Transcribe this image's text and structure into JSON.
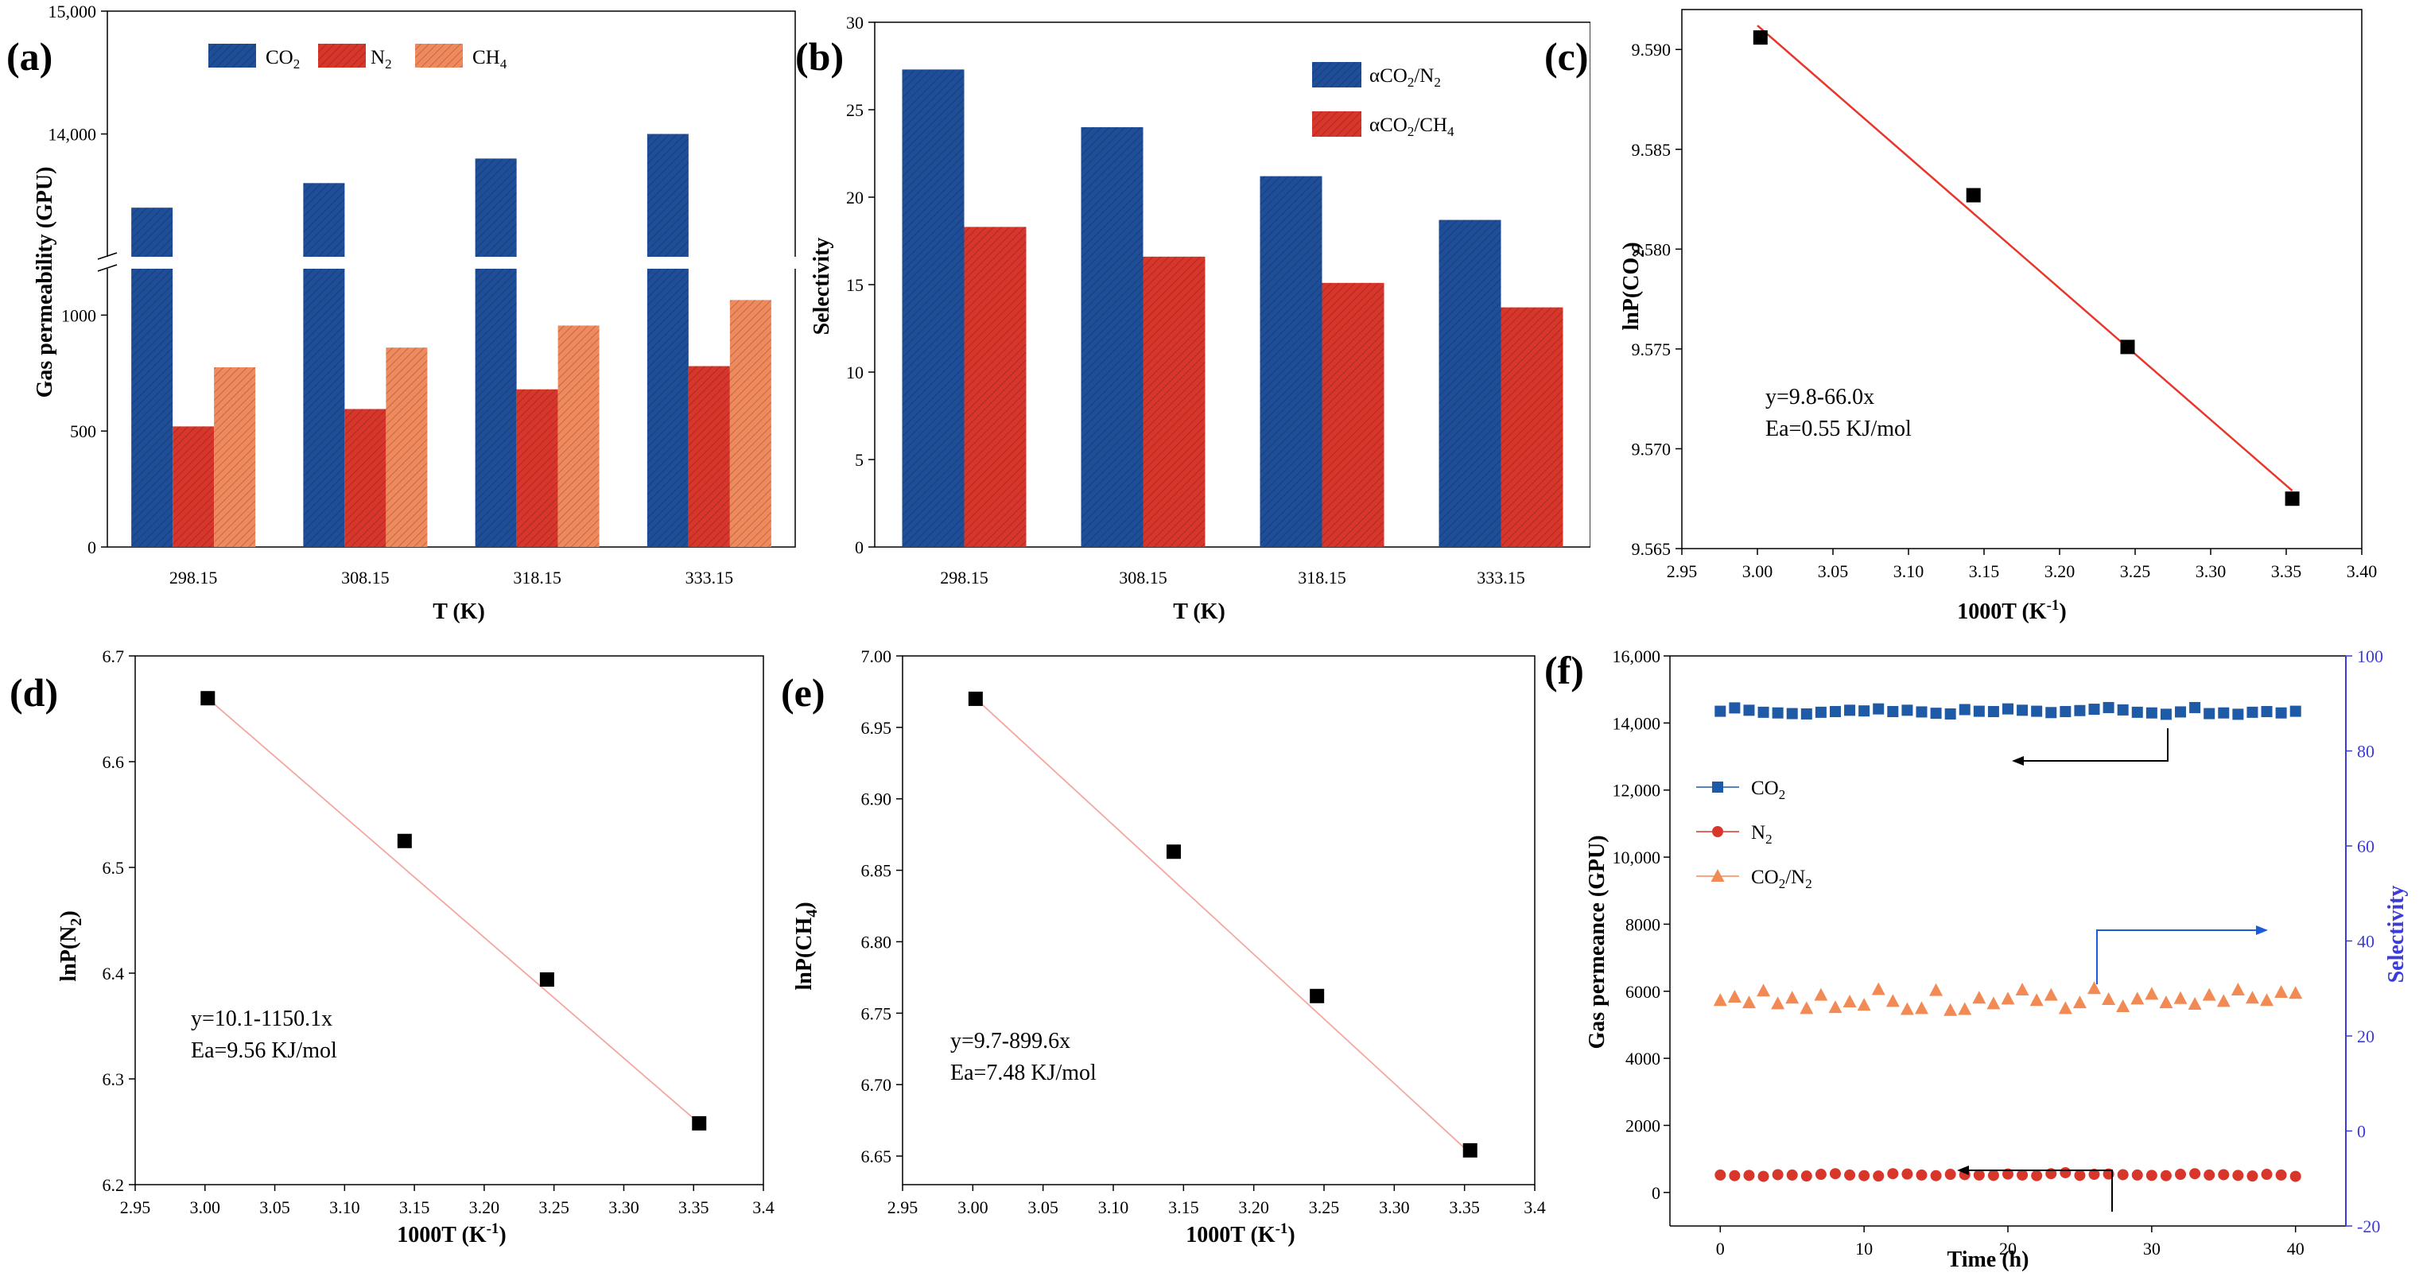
{
  "colors": {
    "co2": "#1f4e99",
    "n2": "#d9362b",
    "ch4": "#f08a5d",
    "fit_red": "#e8362b",
    "fit_pink": "#f4a7a0",
    "selectivity_axis": "#3b3bd9",
    "f_co2": "#1f5aa6",
    "f_n2": "#d9362b",
    "f_sel": "#f28a55"
  },
  "chart_data": [
    {
      "id": "a",
      "panel_label": "(a)",
      "type": "bar",
      "xlabel": "T (K)",
      "ylabel": "Gas permeability (GPU)",
      "categories": [
        "298.15",
        "308.15",
        "318.15",
        "333.15"
      ],
      "series": [
        {
          "name": "CO2",
          "legend_main": "CO",
          "legend_sub": "2",
          "values": [
            13400,
            13600,
            13800,
            14000
          ]
        },
        {
          "name": "N2",
          "legend_main": "N",
          "legend_sub": "2",
          "values": [
            520,
            595,
            680,
            780
          ]
        },
        {
          "name": "CH4",
          "legend_main": "CH",
          "legend_sub": "4",
          "values": [
            775,
            860,
            955,
            1065
          ]
        }
      ],
      "axis_break": true,
      "lower_ylim": [
        0,
        1200
      ],
      "upper_ylim": [
        13000,
        15000
      ],
      "yticks_lower": [
        "0",
        "500",
        "1000"
      ],
      "yticks_upper": [
        "14,000",
        "15,000"
      ]
    },
    {
      "id": "b",
      "panel_label": "(b)",
      "type": "bar",
      "xlabel": "T (K)",
      "ylabel": "Selectivity",
      "categories": [
        "298.15",
        "308.15",
        "318.15",
        "333.15"
      ],
      "series": [
        {
          "name": "αCO2/N2",
          "legend_main": "αCO",
          "legend_sub": "2",
          "legend_tail": "/N",
          "legend_sub2": "2",
          "values": [
            27.3,
            24.0,
            21.2,
            18.7
          ]
        },
        {
          "name": "αCO2/CH4",
          "legend_main": "αCO",
          "legend_sub": "2",
          "legend_tail": "/CH",
          "legend_sub2": "4",
          "values": [
            18.3,
            16.6,
            15.1,
            13.7
          ]
        }
      ],
      "ylim": [
        0,
        30
      ],
      "yticks": [
        "0",
        "5",
        "10",
        "15",
        "20",
        "25",
        "30"
      ]
    },
    {
      "id": "c",
      "panel_label": "(c)",
      "type": "scatter",
      "xlabel_main": "1000T (K",
      "xlabel_sup": "-1",
      "xlabel_end": ")",
      "ylabel_main": "lnP(CO",
      "ylabel_sub": "2",
      "ylabel_end": ")",
      "x": [
        3.002,
        3.143,
        3.245,
        3.354
      ],
      "y": [
        9.5906,
        9.5827,
        9.5751,
        9.5675
      ],
      "fit": {
        "x": [
          3.0,
          3.354
        ],
        "y": [
          9.5912,
          9.5679
        ]
      },
      "xlim": [
        2.95,
        3.4
      ],
      "ylim": [
        9.565,
        9.592
      ],
      "xticks": [
        "2.95",
        "3.00",
        "3.05",
        "3.10",
        "3.15",
        "3.20",
        "3.25",
        "3.30",
        "3.35",
        "3.40"
      ],
      "yticks": [
        "9.565",
        "9.570",
        "9.575",
        "9.580",
        "9.585",
        "9.590"
      ],
      "annotation_1": "y=9.8-66.0x",
      "annotation_2": "Ea=0.55 KJ/mol"
    },
    {
      "id": "d",
      "panel_label": "(d)",
      "type": "scatter",
      "xlabel_main": "1000T (K",
      "xlabel_sup": "-1",
      "xlabel_end": ")",
      "ylabel_main": "lnP(N",
      "ylabel_sub": "2",
      "ylabel_end": ")",
      "x": [
        3.002,
        3.143,
        3.245,
        3.354
      ],
      "y": [
        6.66,
        6.525,
        6.394,
        6.258
      ],
      "fit": {
        "x": [
          3.0,
          3.354
        ],
        "y": [
          6.662,
          6.258
        ]
      },
      "xlim": [
        2.95,
        3.4
      ],
      "ylim": [
        6.2,
        6.7
      ],
      "xticks": [
        "2.95",
        "3.00",
        "3.05",
        "3.10",
        "3.15",
        "3.20",
        "3.25",
        "3.30",
        "3.35",
        "3.4"
      ],
      "yticks": [
        "6.2",
        "6.3",
        "6.4",
        "6.5",
        "6.6",
        "6.7"
      ],
      "annotation_1": "y=10.1-1150.1x",
      "annotation_2": "Ea=9.56 KJ/mol"
    },
    {
      "id": "e",
      "panel_label": "(e)",
      "type": "scatter",
      "xlabel_main": "1000T (K",
      "xlabel_sup": "-1",
      "xlabel_end": ")",
      "ylabel_main": "lnP(CH",
      "ylabel_sub": "4",
      "ylabel_end": ")",
      "x": [
        3.002,
        3.143,
        3.245,
        3.354
      ],
      "y": [
        6.97,
        6.863,
        6.762,
        6.654
      ],
      "fit": {
        "x": [
          3.0,
          3.354
        ],
        "y": [
          6.972,
          6.652
        ]
      },
      "xlim": [
        2.95,
        3.4
      ],
      "ylim": [
        6.63,
        7.0
      ],
      "xticks": [
        "2.95",
        "3.00",
        "3.05",
        "3.10",
        "3.15",
        "3.20",
        "3.25",
        "3.30",
        "3.35",
        "3.4"
      ],
      "yticks": [
        "6.65",
        "6.70",
        "6.75",
        "6.80",
        "6.85",
        "6.90",
        "6.95",
        "7.00"
      ],
      "annotation_1": "y=9.7-899.6x",
      "annotation_2": "Ea=7.48 KJ/mol"
    },
    {
      "id": "f",
      "panel_label": "(f)",
      "type": "line",
      "xlabel": "Time (h)",
      "ylabel_left": "Gas permeance (GPU)",
      "ylabel_right": "Selectivity",
      "xlim": [
        -3.5,
        43.5
      ],
      "ylim_left": [
        -1000,
        16000
      ],
      "ylim_right": [
        -20,
        100
      ],
      "xticks": [
        "0",
        "10",
        "20",
        "30",
        "40"
      ],
      "yticks_left": [
        "0",
        "2000",
        "4000",
        "6000",
        "8000",
        "10,000",
        "12,000",
        "14,000",
        "16,000"
      ],
      "yticks_right": [
        "-20",
        "0",
        "20",
        "40",
        "60",
        "80",
        "100"
      ],
      "legend": [
        {
          "main": "CO",
          "sub": "2",
          "tail": "",
          "sub2": ""
        },
        {
          "main": "N",
          "sub": "2",
          "tail": "",
          "sub2": ""
        },
        {
          "main": "CO",
          "sub": "2",
          "tail": "/N",
          "sub2": "2"
        }
      ],
      "series": [
        {
          "name": "CO2",
          "axis": "left",
          "marker": "square",
          "x": [
            0,
            1,
            2,
            3,
            4,
            5,
            6,
            7,
            8,
            9,
            10,
            11,
            12,
            13,
            14,
            15,
            16,
            17,
            18,
            19,
            20,
            21,
            22,
            23,
            24,
            25,
            26,
            27,
            28,
            29,
            30,
            31,
            32,
            33,
            34,
            35,
            36,
            37,
            38,
            39,
            40
          ],
          "values": [
            14350,
            14450,
            14380,
            14320,
            14300,
            14280,
            14270,
            14320,
            14340,
            14380,
            14360,
            14420,
            14340,
            14380,
            14330,
            14290,
            14270,
            14400,
            14350,
            14340,
            14420,
            14380,
            14350,
            14310,
            14340,
            14370,
            14410,
            14460,
            14390,
            14320,
            14300,
            14260,
            14330,
            14460,
            14280,
            14300,
            14260,
            14320,
            14340,
            14300,
            14350
          ]
        },
        {
          "name": "N2",
          "axis": "left",
          "marker": "circle",
          "x": [
            0,
            1,
            2,
            3,
            4,
            5,
            6,
            7,
            8,
            9,
            10,
            11,
            12,
            13,
            14,
            15,
            16,
            17,
            18,
            19,
            20,
            21,
            22,
            23,
            24,
            25,
            26,
            27,
            28,
            29,
            30,
            31,
            32,
            33,
            34,
            35,
            36,
            37,
            38,
            39,
            40
          ],
          "values": [
            520,
            500,
            510,
            480,
            530,
            520,
            490,
            540,
            560,
            520,
            500,
            490,
            560,
            550,
            520,
            500,
            540,
            530,
            520,
            510,
            550,
            520,
            500,
            560,
            590,
            510,
            540,
            550,
            530,
            520,
            510,
            500,
            540,
            560,
            520,
            530,
            510,
            490,
            540,
            520,
            480
          ]
        },
        {
          "name": "CO2/N2",
          "axis": "right",
          "marker": "triangle",
          "x": [
            0,
            1,
            2,
            3,
            4,
            5,
            6,
            7,
            8,
            9,
            10,
            11,
            12,
            13,
            14,
            15,
            16,
            17,
            18,
            19,
            20,
            21,
            22,
            23,
            24,
            25,
            26,
            27,
            28,
            29,
            30,
            31,
            32,
            33,
            34,
            35,
            36,
            37,
            38,
            39,
            40
          ],
          "values": [
            27.5,
            28.2,
            27.0,
            29.5,
            26.8,
            28.0,
            25.8,
            28.6,
            26.0,
            27.2,
            26.5,
            29.8,
            27.3,
            25.6,
            25.8,
            29.6,
            25.4,
            25.6,
            28.0,
            26.8,
            27.8,
            29.7,
            27.5,
            28.6,
            25.8,
            27.0,
            30.0,
            27.7,
            26.2,
            27.8,
            28.8,
            27.0,
            27.9,
            26.7,
            28.6,
            27.3,
            29.7,
            28.0,
            27.5,
            29.2,
            29.0
          ]
        }
      ]
    }
  ]
}
